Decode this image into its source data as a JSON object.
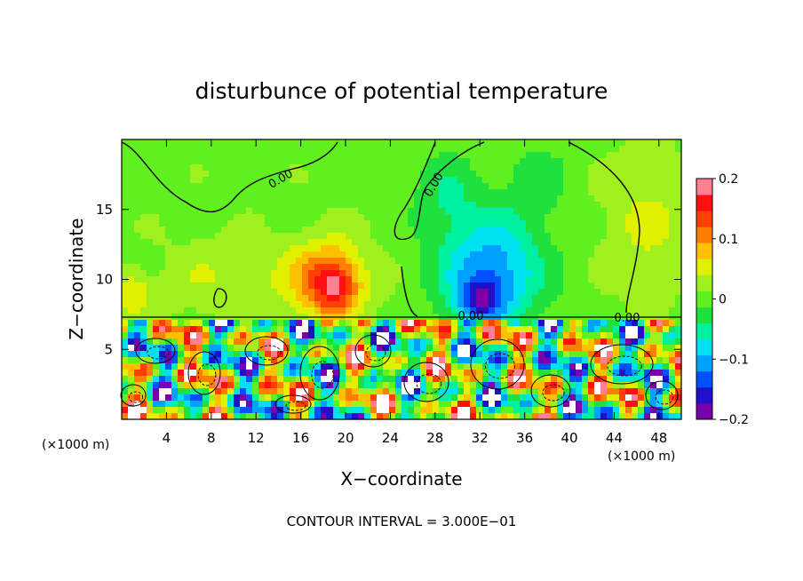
{
  "chart_data": {
    "type": "heatmap",
    "title": "disturbunce of potential temperature",
    "xlabel": "X−coordinate",
    "ylabel": "Z−coordinate",
    "x_unit_label": "(×1000 m)",
    "y_unit_label": "(×1000 m)",
    "xlim": [
      0,
      50
    ],
    "ylim": [
      0,
      20
    ],
    "x_ticks": [
      4,
      8,
      12,
      16,
      20,
      24,
      28,
      32,
      36,
      40,
      44,
      48
    ],
    "x_tick_labels": [
      "4",
      "8",
      "12",
      "16",
      "20",
      "24",
      "28",
      "32",
      "36",
      "40",
      "44",
      "48"
    ],
    "y_ticks": [
      5,
      10,
      15
    ],
    "y_tick_labels": [
      "5",
      "10",
      "15"
    ],
    "colorbar": {
      "range": [
        -0.2,
        0.2
      ],
      "tick_values": [
        0.2,
        0.1,
        0,
        -0.1,
        -0.2
      ],
      "tick_labels": [
        "0.2",
        "0.1",
        "0",
        "−0.1",
        "−0.2"
      ],
      "colors": [
        "#7a00aa",
        "#2010c8",
        "#0050ff",
        "#00a0ff",
        "#00e0f0",
        "#00f0a0",
        "#20e040",
        "#60f020",
        "#a0f020",
        "#e0f000",
        "#ffc000",
        "#ff8000",
        "#ff4000",
        "#ff1010",
        "#ff8090"
      ]
    },
    "contour_interval_text": "CONTOUR INTERVAL = 3.000E−01",
    "contour_labels": [
      "0.00",
      "0.00",
      "0.00",
      "0.00"
    ],
    "blobs": [
      {
        "x": 18,
        "z": 10,
        "v": 0.09,
        "sx": 4,
        "sz": 3
      },
      {
        "x": 19,
        "z": 9.5,
        "v": 0.1,
        "sx": 2,
        "sz": 2
      },
      {
        "x": 33,
        "z": 10.5,
        "v": -0.12,
        "sx": 4.5,
        "sz": 4
      },
      {
        "x": 32,
        "z": 8.5,
        "v": -0.1,
        "sx": 2,
        "sz": 1.5
      },
      {
        "x": 29,
        "z": 16,
        "v": -0.04,
        "sx": 3,
        "sz": 3
      },
      {
        "x": 37,
        "z": 17,
        "v": -0.03,
        "sx": 3,
        "sz": 3
      },
      {
        "x": 8,
        "z": 10,
        "v": 0.03,
        "sx": 5,
        "sz": 3
      },
      {
        "x": 1,
        "z": 9,
        "v": 0.06,
        "sx": 1.5,
        "sz": 1.5
      },
      {
        "x": 47,
        "z": 14,
        "v": 0.04,
        "sx": 4,
        "sz": 5
      }
    ]
  },
  "colors": {
    "background": "#ffffff",
    "contour": "#000000"
  }
}
